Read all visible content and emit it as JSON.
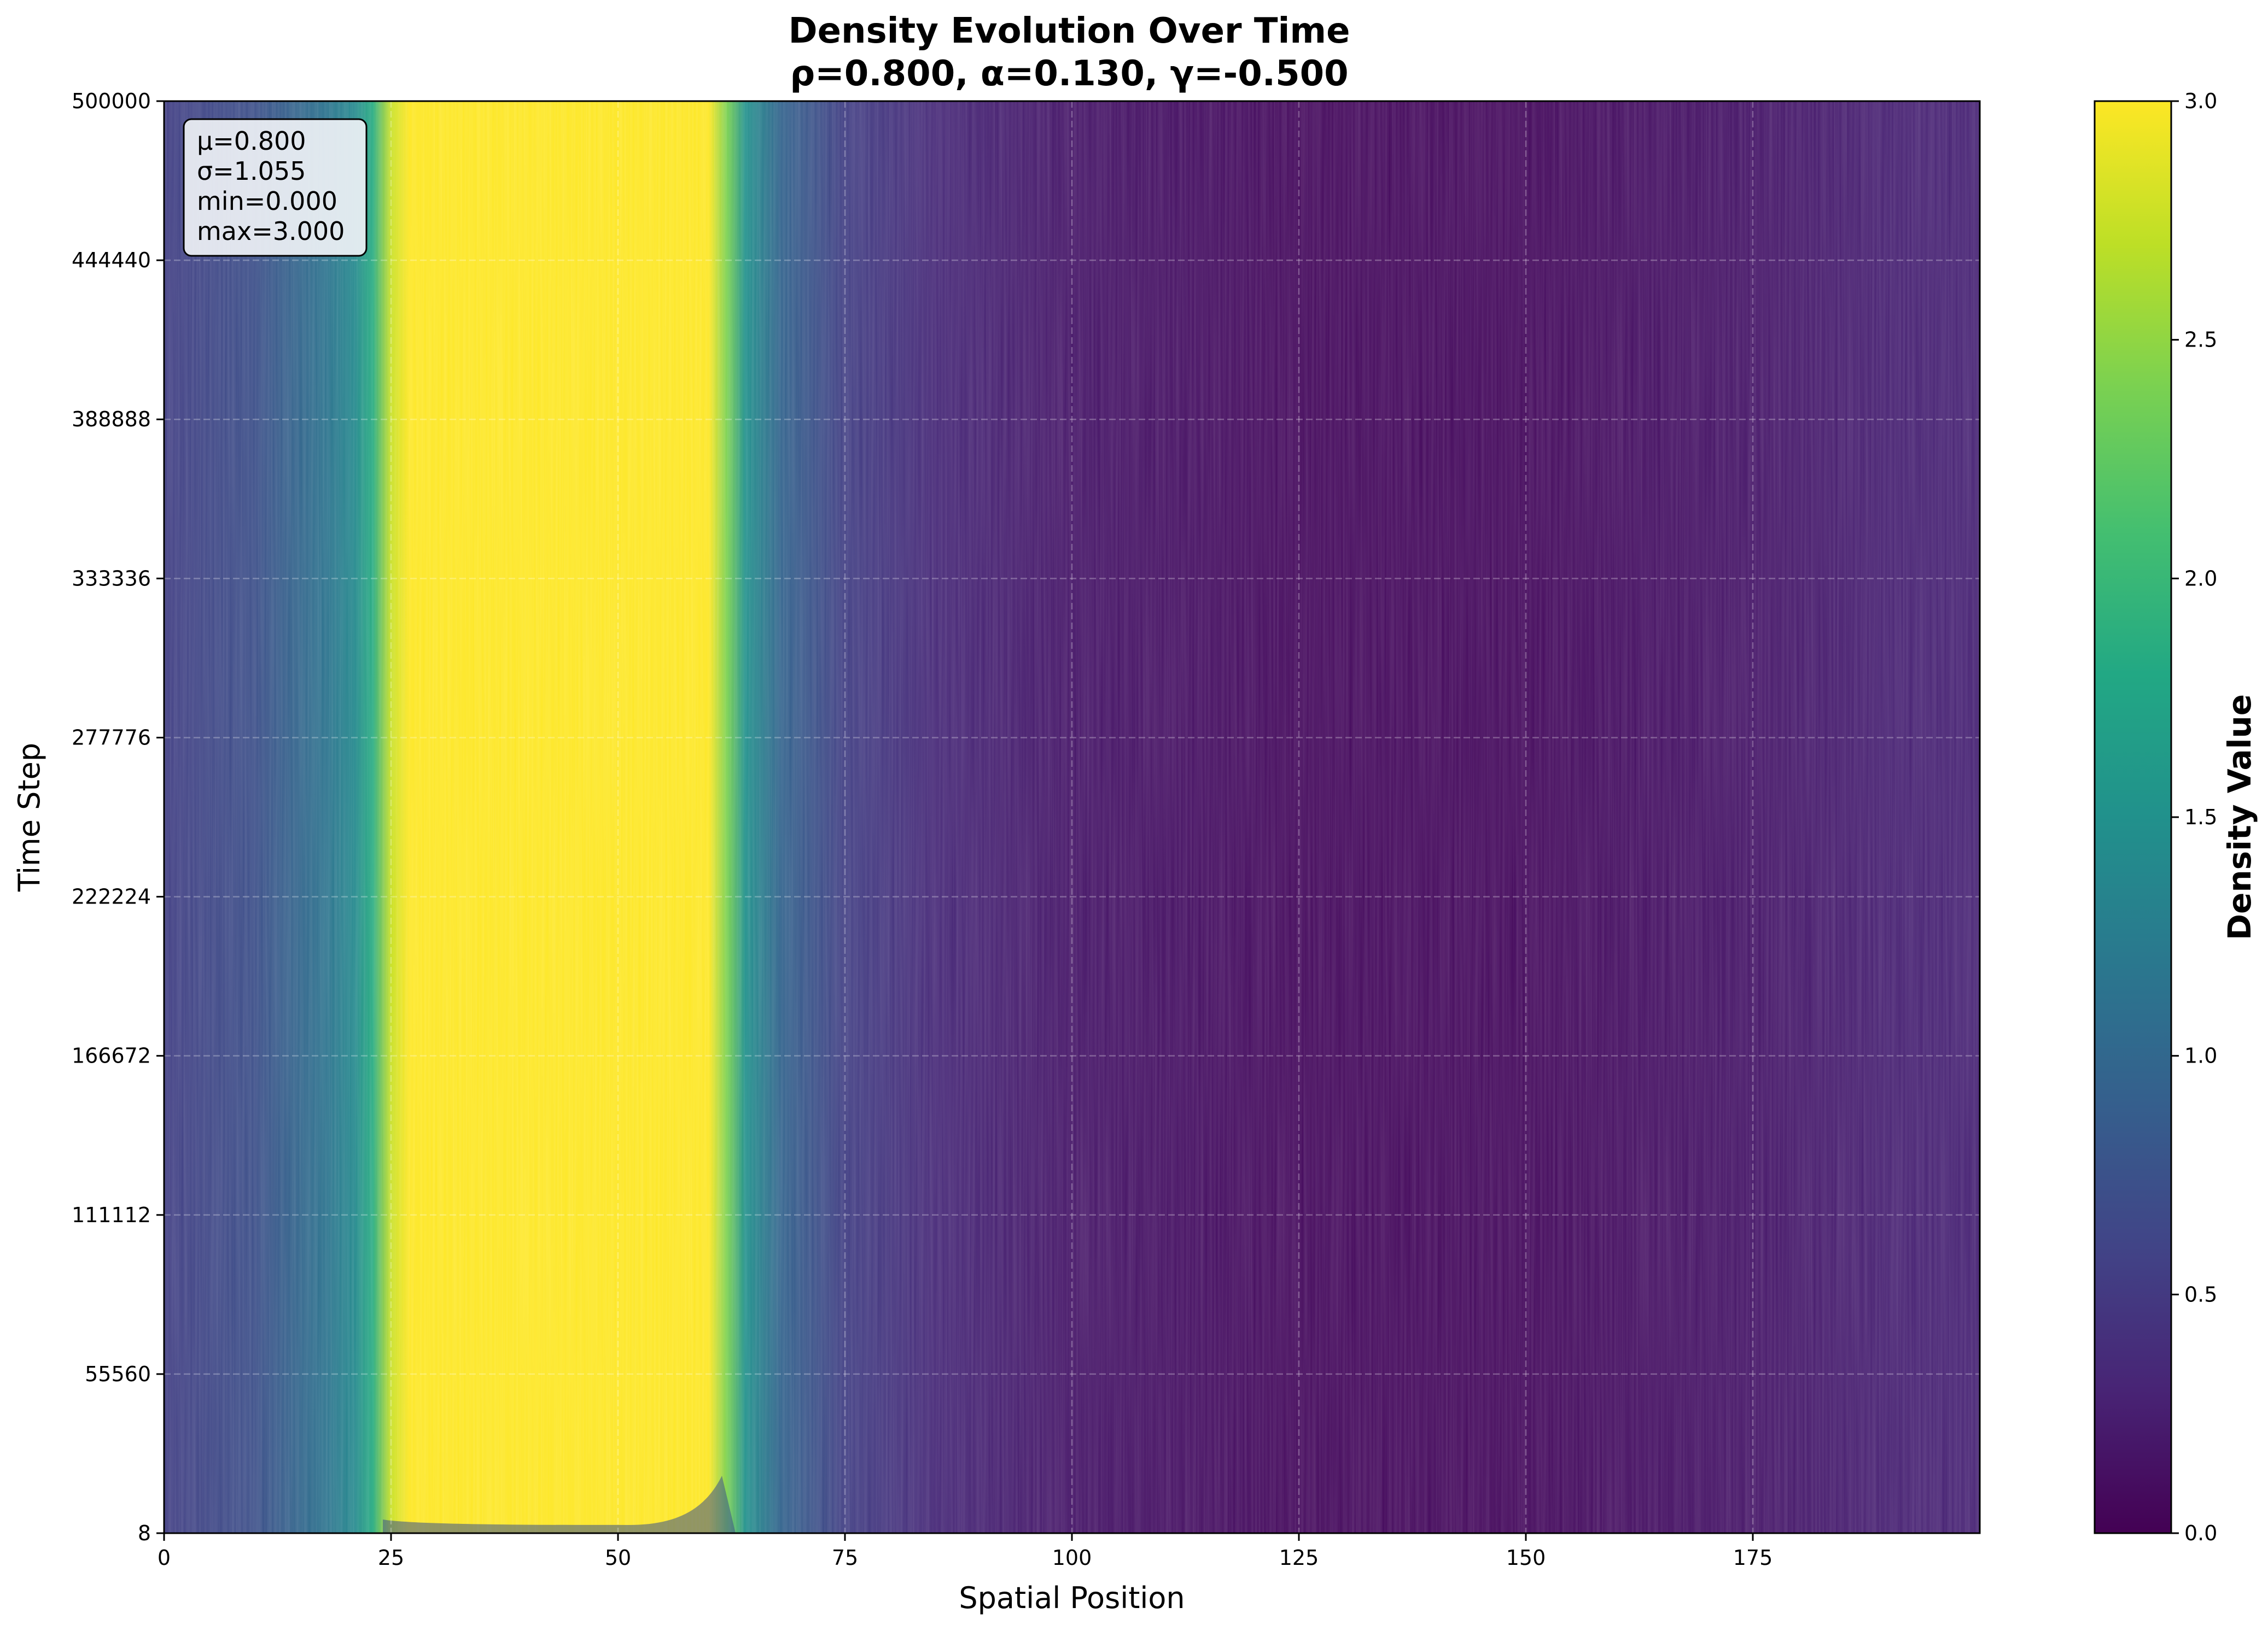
{
  "chart_data": {
    "type": "heatmap",
    "title_line1": "Density Evolution Over Time",
    "title_line2": "ρ=0.800, α=0.130, γ=-0.500",
    "xlabel": "Spatial Position",
    "ylabel": "Time Step",
    "xlim": [
      0,
      200
    ],
    "ylim": [
      8,
      500000
    ],
    "xticks": [
      0,
      25,
      50,
      75,
      100,
      125,
      150,
      175
    ],
    "xtick_labels": [
      "0",
      "25",
      "50",
      "75",
      "100",
      "125",
      "150",
      "175"
    ],
    "yticks": [
      8,
      55560,
      111112,
      166672,
      222224,
      277776,
      333336,
      388888,
      444440,
      500000
    ],
    "ytick_labels": [
      "8",
      "55560",
      "111112",
      "166672",
      "222224",
      "277776",
      "333336",
      "388888",
      "444440",
      "500000"
    ],
    "grid": true,
    "colormap": "viridis",
    "colorbar": {
      "label": "Density Value",
      "min": 0.0,
      "max": 3.0,
      "ticks": [
        0.0,
        0.5,
        1.0,
        1.5,
        2.0,
        2.5,
        3.0
      ],
      "tick_labels": [
        "0.0",
        "0.5",
        "1.0",
        "1.5",
        "2.0",
        "2.5",
        "3.0"
      ]
    },
    "stats_box": {
      "placement": "top-left",
      "lines": [
        "μ=0.800",
        "σ=1.055",
        "min=0.000",
        "max=3.000"
      ]
    },
    "density_profile": {
      "x": [
        0,
        10,
        18,
        21,
        23,
        25,
        27,
        60,
        62,
        64,
        68,
        75,
        85,
        100,
        125,
        150,
        175,
        190,
        200
      ],
      "value": [
        0.55,
        0.72,
        1.15,
        1.4,
        1.85,
        2.75,
        3.0,
        3.0,
        2.4,
        1.5,
        0.95,
        0.55,
        0.35,
        0.18,
        0.08,
        0.08,
        0.18,
        0.28,
        0.3
      ]
    }
  }
}
